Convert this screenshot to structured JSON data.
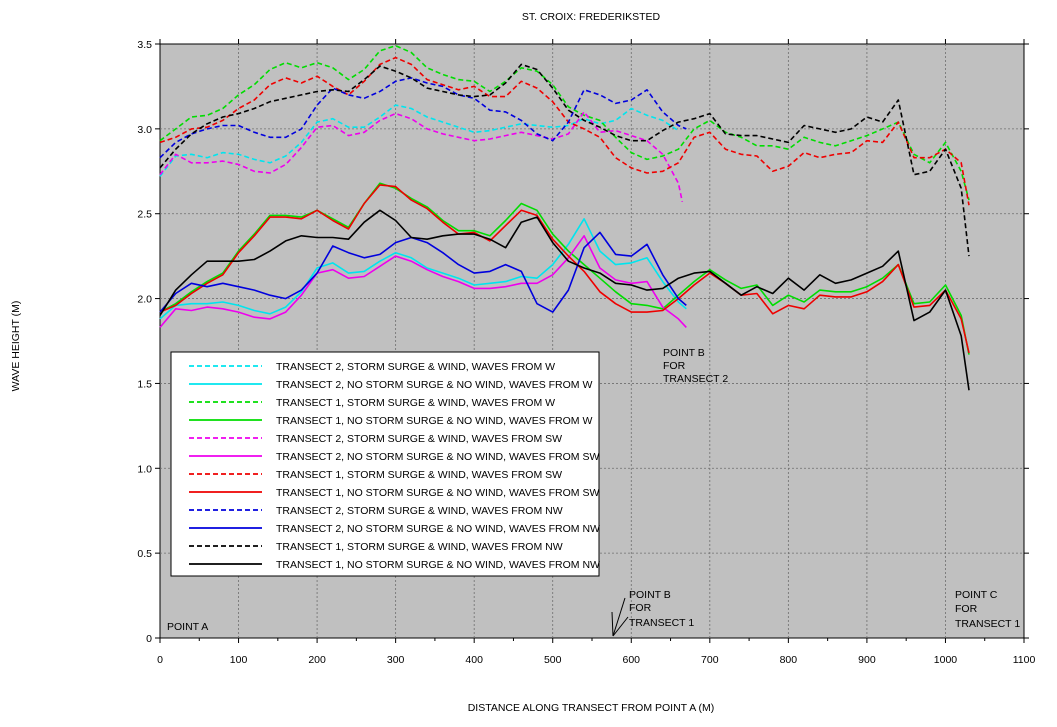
{
  "chart_data": {
    "type": "line",
    "title": "ST. CROIX: FREDERIKSTED",
    "xlabel": "DISTANCE ALONG TRANSECT FROM POINT A (M)",
    "ylabel": "WAVE HEIGHT (M)",
    "xlim": [
      0,
      1100
    ],
    "ylim": [
      0,
      3.5
    ],
    "xticks": [
      0,
      100,
      200,
      300,
      400,
      500,
      600,
      700,
      800,
      900,
      1000,
      1100
    ],
    "yticks": [
      0,
      0.5,
      1.0,
      1.5,
      2.0,
      2.5,
      3.0,
      3.5
    ],
    "ytick_labels": [
      "0",
      "0.5",
      "1.0",
      "1.5",
      "2.0",
      "2.5",
      "3.0",
      "3.5"
    ],
    "grid": true,
    "legend_position": "bottom-left",
    "annotations": {
      "point_a": "POINT A",
      "point_b_t2": [
        "POINT B",
        "FOR",
        "TRANSECT 2"
      ],
      "point_b_t1": [
        "POINT B",
        "FOR",
        "TRANSECT 1"
      ],
      "point_c_t1": [
        "POINT C",
        "FOR",
        "TRANSECT 1"
      ]
    },
    "series": [
      {
        "name": "TRANSECT 2, STORM SURGE & WIND, WAVES FROM W",
        "color": "#00e5ee",
        "dashed": true,
        "x": [
          0,
          20,
          40,
          60,
          80,
          100,
          120,
          140,
          160,
          180,
          200,
          220,
          240,
          260,
          280,
          300,
          320,
          340,
          360,
          380,
          400,
          420,
          440,
          460,
          480,
          500,
          520,
          540,
          560,
          580,
          600,
          620,
          640,
          660
        ],
        "y": [
          2.72,
          2.84,
          2.85,
          2.83,
          2.86,
          2.85,
          2.82,
          2.8,
          2.84,
          2.92,
          3.04,
          3.06,
          3.01,
          3.01,
          3.07,
          3.14,
          3.12,
          3.07,
          3.04,
          3.01,
          2.98,
          2.99,
          3.01,
          3.03,
          3.02,
          3.01,
          3.02,
          3.06,
          3.03,
          3.05,
          3.12,
          3.08,
          3.05,
          2.99
        ]
      },
      {
        "name": "TRANSECT 2, NO STORM SURGE & NO WIND, WAVES FROM W",
        "color": "#00e5ee",
        "dashed": false,
        "x": [
          0,
          20,
          40,
          60,
          80,
          100,
          120,
          140,
          160,
          180,
          200,
          220,
          240,
          260,
          280,
          300,
          320,
          340,
          360,
          380,
          400,
          420,
          440,
          460,
          480,
          500,
          520,
          540,
          560,
          580,
          600,
          620,
          640,
          660,
          670
        ],
        "y": [
          1.88,
          1.96,
          1.97,
          1.97,
          1.98,
          1.96,
          1.93,
          1.91,
          1.95,
          2.04,
          2.18,
          2.21,
          2.15,
          2.16,
          2.22,
          2.27,
          2.24,
          2.18,
          2.15,
          2.12,
          2.08,
          2.09,
          2.1,
          2.13,
          2.12,
          2.2,
          2.32,
          2.47,
          2.28,
          2.2,
          2.21,
          2.24,
          2.1,
          1.98,
          1.94
        ]
      },
      {
        "name": "TRANSECT 1, STORM SURGE & WIND, WAVES FROM W",
        "color": "#00dd00",
        "dashed": true,
        "x": [
          0,
          20,
          40,
          60,
          80,
          100,
          120,
          140,
          160,
          180,
          200,
          220,
          240,
          260,
          280,
          300,
          320,
          340,
          360,
          380,
          400,
          420,
          440,
          460,
          480,
          500,
          520,
          540,
          560,
          580,
          600,
          620,
          640,
          660,
          680,
          700,
          720,
          740,
          760,
          780,
          800,
          820,
          840,
          860,
          880,
          900,
          920,
          940,
          960,
          980,
          1000,
          1020,
          1030
        ],
        "y": [
          2.93,
          3.0,
          3.07,
          3.08,
          3.12,
          3.2,
          3.26,
          3.35,
          3.39,
          3.36,
          3.39,
          3.36,
          3.29,
          3.35,
          3.46,
          3.49,
          3.45,
          3.36,
          3.32,
          3.29,
          3.28,
          3.22,
          3.28,
          3.36,
          3.34,
          3.26,
          3.13,
          3.08,
          3.05,
          2.95,
          2.86,
          2.82,
          2.84,
          2.88,
          3.0,
          3.05,
          2.98,
          2.95,
          2.9,
          2.9,
          2.88,
          2.95,
          2.92,
          2.9,
          2.93,
          2.96,
          3.0,
          3.04,
          2.85,
          2.8,
          2.92,
          2.75,
          2.58
        ]
      },
      {
        "name": "TRANSECT 1, NO STORM SURGE & NO WIND, WAVES FROM W",
        "color": "#00dd00",
        "dashed": false,
        "x": [
          0,
          20,
          40,
          60,
          80,
          100,
          120,
          140,
          160,
          180,
          200,
          220,
          240,
          260,
          280,
          300,
          320,
          340,
          360,
          380,
          400,
          420,
          440,
          460,
          480,
          500,
          520,
          540,
          560,
          580,
          600,
          620,
          640,
          660,
          680,
          700,
          720,
          740,
          760,
          780,
          800,
          820,
          840,
          860,
          880,
          900,
          920,
          940,
          960,
          980,
          1000,
          1020,
          1030
        ],
        "y": [
          1.92,
          1.97,
          2.04,
          2.1,
          2.15,
          2.28,
          2.38,
          2.49,
          2.49,
          2.48,
          2.52,
          2.47,
          2.42,
          2.56,
          2.68,
          2.65,
          2.59,
          2.54,
          2.46,
          2.4,
          2.4,
          2.37,
          2.46,
          2.56,
          2.52,
          2.38,
          2.28,
          2.2,
          2.12,
          2.04,
          1.97,
          1.96,
          1.94,
          2.02,
          2.1,
          2.17,
          2.11,
          2.06,
          2.08,
          1.96,
          2.02,
          1.98,
          2.05,
          2.04,
          2.04,
          2.07,
          2.12,
          2.2,
          1.97,
          1.98,
          2.08,
          1.9,
          1.67
        ]
      },
      {
        "name": "TRANSECT 2, STORM SURGE & WIND, WAVES FROM SW",
        "color": "#ee00ee",
        "dashed": true,
        "x": [
          0,
          20,
          40,
          60,
          80,
          100,
          120,
          140,
          160,
          180,
          200,
          220,
          240,
          260,
          280,
          300,
          320,
          340,
          360,
          380,
          400,
          420,
          440,
          460,
          480,
          500,
          520,
          540,
          560,
          580,
          600,
          620,
          640,
          660,
          665
        ],
        "y": [
          2.73,
          2.85,
          2.8,
          2.8,
          2.81,
          2.79,
          2.75,
          2.74,
          2.79,
          2.89,
          3.01,
          3.02,
          2.96,
          2.98,
          3.05,
          3.09,
          3.06,
          3.0,
          2.97,
          2.95,
          2.93,
          2.94,
          2.96,
          2.98,
          2.96,
          2.94,
          2.97,
          3.1,
          2.98,
          2.99,
          2.96,
          2.93,
          2.85,
          2.68,
          2.57
        ]
      },
      {
        "name": "TRANSECT 2, NO STORM SURGE & NO WIND, WAVES FROM SW",
        "color": "#ee00ee",
        "dashed": false,
        "x": [
          0,
          20,
          40,
          60,
          80,
          100,
          120,
          140,
          160,
          180,
          200,
          220,
          240,
          260,
          280,
          300,
          320,
          340,
          360,
          380,
          400,
          420,
          440,
          460,
          480,
          500,
          520,
          540,
          560,
          580,
          600,
          620,
          640,
          660,
          670
        ],
        "y": [
          1.83,
          1.94,
          1.93,
          1.95,
          1.94,
          1.92,
          1.89,
          1.88,
          1.92,
          2.02,
          2.15,
          2.17,
          2.12,
          2.13,
          2.19,
          2.25,
          2.22,
          2.17,
          2.13,
          2.1,
          2.06,
          2.06,
          2.07,
          2.09,
          2.09,
          2.14,
          2.24,
          2.37,
          2.18,
          2.11,
          2.09,
          2.1,
          1.95,
          1.88,
          1.83
        ]
      },
      {
        "name": "TRANSECT 1, STORM SURGE & WIND, WAVES FROM SW",
        "color": "#ee0000",
        "dashed": true,
        "x": [
          0,
          20,
          40,
          60,
          80,
          100,
          120,
          140,
          160,
          180,
          200,
          220,
          240,
          260,
          280,
          300,
          320,
          340,
          360,
          380,
          400,
          420,
          440,
          460,
          480,
          500,
          520,
          540,
          560,
          580,
          600,
          620,
          640,
          660,
          680,
          700,
          720,
          740,
          760,
          780,
          800,
          820,
          840,
          860,
          880,
          900,
          920,
          940,
          960,
          980,
          1000,
          1020,
          1030
        ],
        "y": [
          2.92,
          2.95,
          3.0,
          3.01,
          3.05,
          3.12,
          3.17,
          3.26,
          3.3,
          3.27,
          3.31,
          3.25,
          3.2,
          3.28,
          3.38,
          3.42,
          3.38,
          3.29,
          3.26,
          3.23,
          3.25,
          3.19,
          3.19,
          3.28,
          3.24,
          3.16,
          3.04,
          3.0,
          2.95,
          2.83,
          2.77,
          2.74,
          2.75,
          2.8,
          2.95,
          2.98,
          2.88,
          2.85,
          2.84,
          2.75,
          2.78,
          2.86,
          2.83,
          2.85,
          2.86,
          2.93,
          2.92,
          3.04,
          2.83,
          2.83,
          2.88,
          2.8,
          2.55
        ]
      },
      {
        "name": "TRANSECT 1, NO STORM SURGE & NO WIND, WAVES FROM SW",
        "color": "#ee0000",
        "dashed": false,
        "x": [
          0,
          20,
          40,
          60,
          80,
          100,
          120,
          140,
          160,
          180,
          200,
          220,
          240,
          260,
          280,
          300,
          320,
          340,
          360,
          380,
          400,
          420,
          440,
          460,
          480,
          500,
          520,
          540,
          560,
          580,
          600,
          620,
          640,
          660,
          680,
          700,
          720,
          740,
          760,
          780,
          800,
          820,
          840,
          860,
          880,
          900,
          920,
          940,
          960,
          980,
          1000,
          1020,
          1030
        ],
        "y": [
          1.92,
          1.96,
          2.03,
          2.09,
          2.14,
          2.27,
          2.37,
          2.48,
          2.48,
          2.47,
          2.52,
          2.46,
          2.41,
          2.56,
          2.67,
          2.66,
          2.58,
          2.53,
          2.45,
          2.38,
          2.39,
          2.34,
          2.43,
          2.52,
          2.49,
          2.35,
          2.25,
          2.16,
          2.04,
          1.97,
          1.92,
          1.92,
          1.93,
          2.0,
          2.08,
          2.15,
          2.09,
          2.02,
          2.03,
          1.91,
          1.96,
          1.94,
          2.02,
          2.01,
          2.01,
          2.04,
          2.1,
          2.2,
          1.95,
          1.96,
          2.05,
          1.88,
          1.68
        ]
      },
      {
        "name": "TRANSECT 2, STORM SURGE & WIND, WAVES FROM NW",
        "color": "#0000dd",
        "dashed": true,
        "x": [
          0,
          20,
          40,
          60,
          80,
          100,
          120,
          140,
          160,
          180,
          200,
          220,
          240,
          260,
          280,
          300,
          320,
          340,
          360,
          380,
          400,
          420,
          440,
          460,
          480,
          500,
          520,
          540,
          560,
          580,
          600,
          620,
          640,
          660,
          670
        ],
        "y": [
          2.83,
          2.92,
          2.97,
          3.0,
          3.02,
          3.02,
          2.98,
          2.95,
          2.95,
          3.0,
          3.14,
          3.24,
          3.2,
          3.18,
          3.22,
          3.28,
          3.3,
          3.27,
          3.25,
          3.2,
          3.18,
          3.11,
          3.1,
          3.05,
          2.97,
          2.93,
          3.04,
          3.23,
          3.2,
          3.15,
          3.17,
          3.23,
          3.1,
          3.02,
          3.0
        ]
      },
      {
        "name": "TRANSECT 2, NO STORM SURGE & NO WIND, WAVES FROM NW",
        "color": "#0000dd",
        "dashed": false,
        "x": [
          0,
          20,
          40,
          60,
          80,
          100,
          120,
          140,
          160,
          180,
          200,
          220,
          240,
          260,
          280,
          300,
          320,
          340,
          360,
          380,
          400,
          420,
          440,
          460,
          480,
          500,
          520,
          540,
          560,
          580,
          600,
          620,
          640,
          660,
          670
        ],
        "y": [
          1.92,
          2.03,
          2.09,
          2.07,
          2.09,
          2.07,
          2.05,
          2.02,
          2.0,
          2.05,
          2.15,
          2.31,
          2.27,
          2.24,
          2.26,
          2.33,
          2.36,
          2.33,
          2.27,
          2.2,
          2.15,
          2.16,
          2.2,
          2.16,
          1.97,
          1.92,
          2.05,
          2.3,
          2.39,
          2.26,
          2.25,
          2.32,
          2.14,
          2.0,
          1.96
        ]
      },
      {
        "name": "TRANSECT 1, STORM SURGE & WIND, WAVES FROM NW",
        "color": "#000000",
        "dashed": true,
        "x": [
          0,
          20,
          40,
          60,
          80,
          100,
          120,
          140,
          160,
          180,
          200,
          220,
          240,
          260,
          280,
          300,
          320,
          340,
          360,
          380,
          400,
          420,
          440,
          460,
          480,
          500,
          520,
          540,
          560,
          580,
          600,
          620,
          640,
          660,
          680,
          700,
          720,
          740,
          760,
          780,
          800,
          820,
          840,
          860,
          880,
          900,
          920,
          940,
          960,
          980,
          1000,
          1020,
          1030
        ],
        "y": [
          2.77,
          2.88,
          2.97,
          3.03,
          3.07,
          3.09,
          3.12,
          3.16,
          3.18,
          3.2,
          3.22,
          3.23,
          3.22,
          3.29,
          3.37,
          3.34,
          3.3,
          3.24,
          3.22,
          3.2,
          3.19,
          3.2,
          3.27,
          3.38,
          3.35,
          3.24,
          3.11,
          3.05,
          3.01,
          2.96,
          2.93,
          2.93,
          2.99,
          3.04,
          3.06,
          3.09,
          2.97,
          2.96,
          2.96,
          2.94,
          2.92,
          3.02,
          3.0,
          2.98,
          3.0,
          3.07,
          3.04,
          3.17,
          2.73,
          2.75,
          2.88,
          2.65,
          2.25
        ]
      },
      {
        "name": "TRANSECT 1, NO STORM SURGE & NO WIND, WAVES FROM NW",
        "color": "#000000",
        "dashed": false,
        "x": [
          0,
          20,
          40,
          60,
          80,
          100,
          120,
          140,
          160,
          180,
          200,
          220,
          240,
          260,
          280,
          300,
          320,
          340,
          360,
          380,
          400,
          420,
          440,
          460,
          480,
          500,
          520,
          540,
          560,
          580,
          600,
          620,
          640,
          660,
          680,
          700,
          720,
          740,
          760,
          780,
          800,
          820,
          840,
          860,
          880,
          900,
          920,
          940,
          960,
          980,
          1000,
          1020,
          1030
        ],
        "y": [
          1.9,
          2.05,
          2.14,
          2.22,
          2.22,
          2.22,
          2.23,
          2.28,
          2.34,
          2.37,
          2.36,
          2.36,
          2.35,
          2.45,
          2.52,
          2.46,
          2.36,
          2.35,
          2.37,
          2.38,
          2.38,
          2.35,
          2.3,
          2.45,
          2.48,
          2.33,
          2.22,
          2.18,
          2.15,
          2.09,
          2.08,
          2.05,
          2.06,
          2.12,
          2.15,
          2.16,
          2.09,
          2.02,
          2.07,
          2.03,
          2.12,
          2.05,
          2.14,
          2.09,
          2.11,
          2.15,
          2.19,
          2.28,
          1.87,
          1.92,
          2.05,
          1.78,
          1.46
        ]
      }
    ]
  }
}
